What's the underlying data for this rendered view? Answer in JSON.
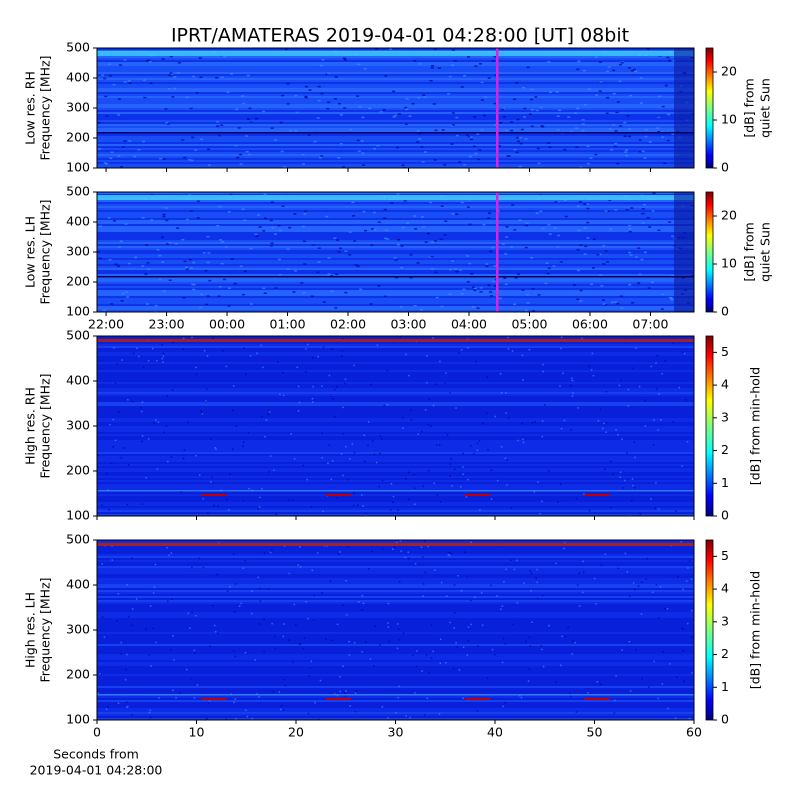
{
  "title": "IPRT/AMATERAS 2019-04-01 04:28:00 [UT]   08bit",
  "chart_data": [
    {
      "type": "heatmap",
      "ylabel": [
        "Low res. RH",
        "Frequency [MHz]"
      ],
      "ylim": [
        100,
        500
      ],
      "yticks": [
        100,
        200,
        300,
        400,
        500
      ],
      "xlim": [
        21.85,
        31.72
      ],
      "xticks": [
        {
          "value": 22,
          "label": "22:00"
        },
        {
          "value": 23,
          "label": "23:00"
        },
        {
          "value": 24,
          "label": "00:00"
        },
        {
          "value": 25,
          "label": "01:00"
        },
        {
          "value": 26,
          "label": "02:00"
        },
        {
          "value": 27,
          "label": "03:00"
        },
        {
          "value": 28,
          "label": "04:00"
        },
        {
          "value": 29,
          "label": "05:00"
        },
        {
          "value": 30,
          "label": "06:00"
        },
        {
          "value": 31,
          "label": "07:00"
        }
      ],
      "show_xtick_labels": false,
      "marker_x": 28.467,
      "marker_color": "#dd22dd",
      "colorbar_label": [
        "[dB] from",
        "quiet Sun"
      ],
      "clim": [
        0,
        25
      ],
      "cticks": [
        0,
        10,
        20
      ]
    },
    {
      "type": "heatmap",
      "ylabel": [
        "Low res. LH",
        "Frequency [MHz]"
      ],
      "ylim": [
        100,
        500
      ],
      "yticks": [
        100,
        200,
        300,
        400,
        500
      ],
      "xlim": [
        21.85,
        31.72
      ],
      "xticks": [
        {
          "value": 22,
          "label": "22:00"
        },
        {
          "value": 23,
          "label": "23:00"
        },
        {
          "value": 24,
          "label": "00:00"
        },
        {
          "value": 25,
          "label": "01:00"
        },
        {
          "value": 26,
          "label": "02:00"
        },
        {
          "value": 27,
          "label": "03:00"
        },
        {
          "value": 28,
          "label": "04:00"
        },
        {
          "value": 29,
          "label": "05:00"
        },
        {
          "value": 30,
          "label": "06:00"
        },
        {
          "value": 31,
          "label": "07:00"
        }
      ],
      "show_xtick_labels": true,
      "marker_x": 28.467,
      "marker_color": "#dd22dd",
      "colorbar_label": [
        "[dB] from",
        "quiet Sun"
      ],
      "clim": [
        0,
        25
      ],
      "cticks": [
        0,
        10,
        20
      ]
    },
    {
      "type": "heatmap",
      "ylabel": [
        "High res. RH",
        "Frequency [MHz]"
      ],
      "ylim": [
        100,
        500
      ],
      "yticks": [
        100,
        200,
        300,
        400,
        500
      ],
      "xlim": [
        0,
        60
      ],
      "xticks": [
        0,
        10,
        20,
        30,
        40,
        50,
        60
      ],
      "show_xtick_labels": false,
      "colorbar_label": [
        "[dB] from min-hold"
      ],
      "clim": [
        0,
        5.5
      ],
      "cticks": [
        0,
        1,
        2,
        3,
        4,
        5
      ]
    },
    {
      "type": "heatmap",
      "ylabel": [
        "High res. LH",
        "Frequency [MHz]"
      ],
      "ylim": [
        100,
        500
      ],
      "yticks": [
        100,
        200,
        300,
        400,
        500
      ],
      "xlim": [
        0,
        60
      ],
      "xticks": [
        0,
        10,
        20,
        30,
        40,
        50,
        60
      ],
      "show_xtick_labels": true,
      "xlabel": [
        "Seconds from",
        "2019-04-01 04:28:00"
      ],
      "colorbar_label": [
        "[dB] from min-hold"
      ],
      "clim": [
        0,
        5.5
      ],
      "cticks": [
        0,
        1,
        2,
        3,
        4,
        5
      ]
    }
  ]
}
